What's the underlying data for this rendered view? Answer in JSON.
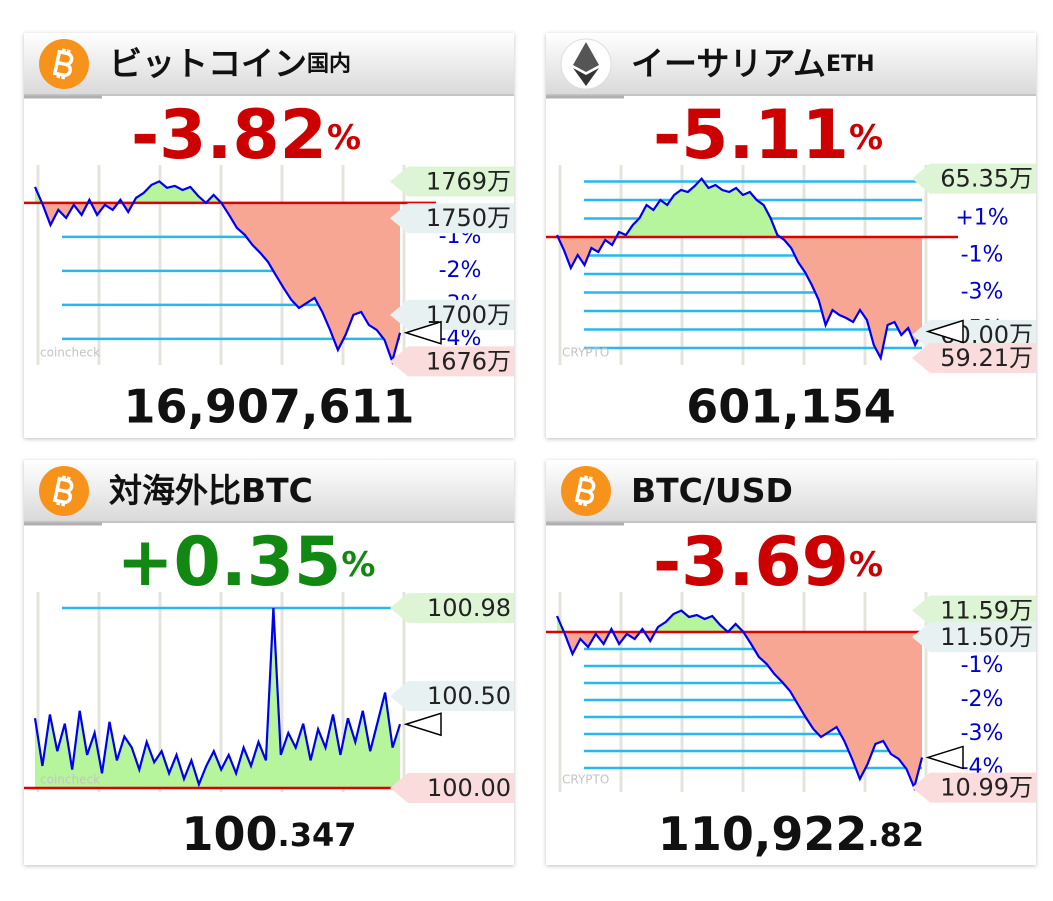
{
  "chart_data": [
    {
      "type": "line",
      "title": "ビットコイン",
      "title_sub": "国内",
      "change": {
        "value": -3.82,
        "label": "-3.82"
      },
      "change_unit": "%",
      "price": {
        "value": 16907611,
        "label": "16,907,611"
      },
      "watermark": "coincheck",
      "ylim": [
        16741000,
        17775000
      ],
      "base": 17579000,
      "ygrid": [
        17403210,
        17227420,
        17051630,
        16875840
      ],
      "yticks": [
        {
          "value": 17403210,
          "label": "-1%"
        },
        {
          "value": 17227420,
          "label": "-2%"
        },
        {
          "value": 17051630,
          "label": "-3%"
        },
        {
          "value": 16875840,
          "label": "-4%"
        }
      ],
      "tags": [
        {
          "value": 17690000,
          "label": "1769万",
          "color": "#ddf5d4"
        },
        {
          "value": 17500000,
          "label": "1750万",
          "color": "#e8f1f1"
        },
        {
          "value": 17000000,
          "label": "1700万",
          "color": "#e8f1f1"
        },
        {
          "value": 16760000,
          "label": "1676万",
          "color": "#fbdcdc"
        }
      ],
      "color": "#0000ee",
      "values": [
        17662000,
        17569000,
        17465000,
        17543000,
        17501000,
        17569000,
        17517000,
        17595000,
        17517000,
        17569000,
        17543000,
        17595000,
        17532000,
        17605000,
        17631000,
        17672000,
        17690000,
        17657000,
        17667000,
        17646000,
        17662000,
        17615000,
        17579000,
        17620000,
        17579000,
        17517000,
        17450000,
        17414000,
        17362000,
        17321000,
        17274000,
        17207000,
        17140000,
        17078000,
        17036000,
        17062000,
        17088000,
        17015000,
        16922000,
        16819000,
        16897000,
        17000000,
        17015000,
        16948000,
        16922000,
        16871000,
        16760000,
        16907611
      ]
    },
    {
      "type": "line",
      "title": "イーサリアム",
      "title_sub": "ETH",
      "change": {
        "value": -5.11,
        "label": "-5.11"
      },
      "change_unit": "%",
      "price": {
        "value": 601154,
        "label": "601,154"
      },
      "watermark": "CRYPTO",
      "ylim": [
        589687,
        658187
      ],
      "base": 633527,
      "ygrid": [
        652533,
        646198,
        639862,
        627192,
        620856,
        614521,
        608186,
        601851,
        595515
      ],
      "yticks": [
        {
          "value": 639862,
          "label": "+1%"
        },
        {
          "value": 627192,
          "label": "-1%"
        },
        {
          "value": 614521,
          "label": "-3%"
        },
        {
          "value": 601851,
          "label": "-5%"
        }
      ],
      "tags": [
        {
          "value": 653500,
          "label": "65.35万",
          "color": "#ddf5d4"
        },
        {
          "value": 600000,
          "label": "60.00万",
          "color": "#e8f1f1"
        },
        {
          "value": 592100,
          "label": "59.21万",
          "color": "#fbdcdc"
        }
      ],
      "color": "#0000ee",
      "values": [
        634212,
        629074,
        622909,
        627362,
        623937,
        629759,
        628389,
        632499,
        630787,
        635240,
        634212,
        637637,
        640035,
        644487,
        642775,
        646200,
        644487,
        647912,
        649625,
        648940,
        650995,
        653500,
        650310,
        651337,
        649625,
        648940,
        650310,
        647912,
        648940,
        646200,
        644487,
        640035,
        634212,
        632499,
        629759,
        624964,
        621539,
        617087,
        611949,
        603387,
        608524,
        606812,
        605784,
        604414,
        608524,
        605099,
        596537,
        592100,
        603387,
        604414,
        599962,
        602359,
        596537,
        601154
      ]
    },
    {
      "type": "line",
      "title": "対海外比BTC",
      "change": {
        "value": 0.35,
        "label": "+0.35"
      },
      "change_unit": "%",
      "price": {
        "value": 100.347,
        "label": "100.347"
      },
      "watermark": "coincheck",
      "ylim": [
        99.978,
        101.067
      ],
      "base": 100.0,
      "ygrid": [
        100.98
      ],
      "tags": [
        {
          "value": 100.98,
          "label": "100.98",
          "color": "#ddf5d4"
        },
        {
          "value": 100.5,
          "label": "100.50",
          "color": "#e8f1f1"
        },
        {
          "value": 100.0,
          "label": "100.00",
          "color": "#fbdcdc"
        }
      ],
      "color": "#0000ee",
      "values": [
        100.38,
        100.12,
        100.4,
        100.2,
        100.35,
        100.1,
        100.42,
        100.18,
        100.3,
        100.08,
        100.36,
        100.15,
        100.28,
        100.22,
        100.1,
        100.25,
        100.14,
        100.2,
        100.08,
        100.18,
        100.05,
        100.15,
        100.02,
        100.12,
        100.2,
        100.1,
        100.18,
        100.08,
        100.22,
        100.12,
        100.25,
        100.15,
        100.98,
        100.18,
        100.3,
        100.22,
        100.35,
        100.15,
        100.32,
        100.22,
        100.4,
        100.18,
        100.38,
        100.25,
        100.42,
        100.2,
        100.36,
        100.52,
        100.22,
        100.347
      ]
    },
    {
      "type": "line",
      "title": "BTC/USD",
      "change": {
        "value": -3.69,
        "label": "-3.69"
      },
      "change_unit": "%",
      "price": {
        "value": 110922.82,
        "label": "110,922.82"
      },
      "watermark": "CRYPTO",
      "ylim": [
        109753,
        116527
      ],
      "base": 115172,
      "ygrid": [
        114596,
        114020,
        113444,
        112868,
        112293,
        111717,
        111141,
        110565
      ],
      "yticks": [
        {
          "value": 114020,
          "label": "-1%"
        },
        {
          "value": 112868,
          "label": "-2%"
        },
        {
          "value": 111717,
          "label": "-3%"
        },
        {
          "value": 110565,
          "label": "-4%"
        }
      ],
      "tags": [
        {
          "value": 115900,
          "label": "11.59万",
          "color": "#ddf5d4"
        },
        {
          "value": 115000,
          "label": "11.50万",
          "color": "#e8f1f1"
        },
        {
          "value": 109900,
          "label": "10.99万",
          "color": "#fbdcdc"
        }
      ],
      "color": "#0000ee",
      "values": [
        115714,
        115104,
        114427,
        114935,
        114664,
        115104,
        114766,
        115274,
        114766,
        115104,
        114935,
        115274,
        114867,
        115341,
        115511,
        115782,
        115900,
        115680,
        115748,
        115612,
        115714,
        115409,
        115172,
        115443,
        115172,
        114766,
        114325,
        114088,
        113749,
        113479,
        113174,
        112733,
        112293,
        111887,
        111616,
        111785,
        111954,
        111480,
        110871,
        110193,
        110701,
        111379,
        111480,
        111040,
        110871,
        110532,
        109900,
        110922.82
      ]
    }
  ]
}
